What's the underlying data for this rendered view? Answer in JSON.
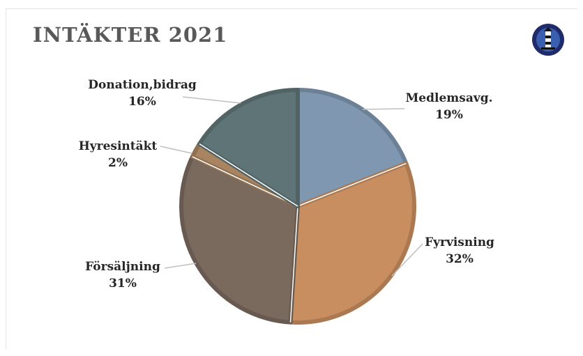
{
  "header": {
    "title": "INTÄKTER 2021"
  },
  "logo": {
    "icon": "lighthouse-logo-icon",
    "colors": {
      "ring": "#1f2b6b",
      "inner": "#3a5fb0",
      "dark": "#111111"
    }
  },
  "chart_data": {
    "type": "pie",
    "title": "INTÄKTER 2021",
    "slices": [
      {
        "label": "Medlemsavg.",
        "pct_label": "19%",
        "value": 19,
        "color": "#7f97b0"
      },
      {
        "label": "Fyrvisning",
        "pct_label": "32%",
        "value": 32,
        "color": "#c98e5f"
      },
      {
        "label": "Försäljning",
        "pct_label": "31%",
        "value": 31,
        "color": "#7a6a5e"
      },
      {
        "label": "Hyresintäkt",
        "pct_label": "2%",
        "value": 2,
        "color": "#a88560"
      },
      {
        "label": "Donation,bidrag",
        "pct_label": "16%",
        "value": 16,
        "color": "#5f7476"
      }
    ],
    "start_angle_deg": 0,
    "direction": "clockwise"
  }
}
